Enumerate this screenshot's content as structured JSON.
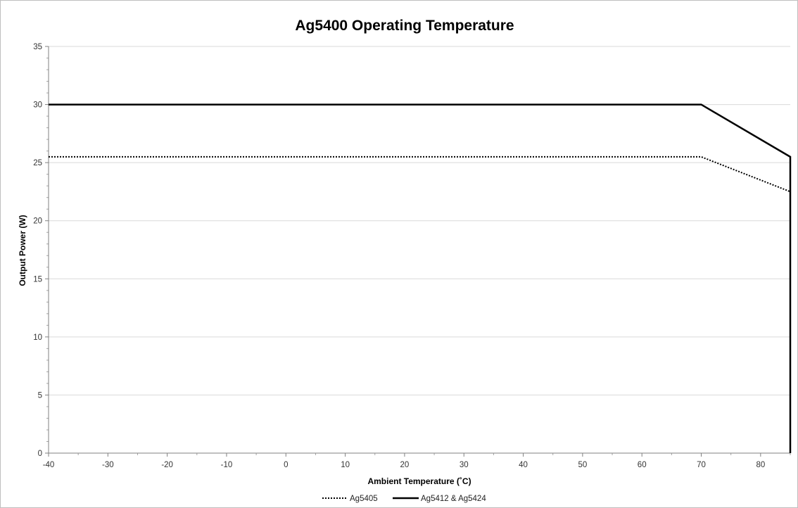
{
  "chart_data": {
    "type": "line",
    "title": "Ag5400 Operating Temperature",
    "xlabel": "Ambient Temperature (˚C)",
    "ylabel": "Output Power (W)",
    "xlim": [
      -40,
      85
    ],
    "ylim": [
      0,
      35
    ],
    "x_ticks": [
      -40,
      -30,
      -20,
      -10,
      0,
      10,
      20,
      30,
      40,
      50,
      60,
      70,
      80
    ],
    "y_ticks": [
      0,
      5,
      10,
      15,
      20,
      25,
      30,
      35
    ],
    "grid": "horizontal",
    "legend_position": "bottom",
    "series": [
      {
        "name": "Ag5405",
        "style": "dotted",
        "color": "#000000",
        "points": [
          [
            -40,
            25.5
          ],
          [
            70,
            25.5
          ],
          [
            85,
            22.5
          ]
        ]
      },
      {
        "name": "Ag5412 & Ag5424",
        "style": "solid",
        "color": "#000000",
        "points": [
          [
            -40,
            30
          ],
          [
            70,
            30
          ],
          [
            85,
            25.5
          ],
          [
            85,
            0
          ]
        ]
      }
    ]
  }
}
